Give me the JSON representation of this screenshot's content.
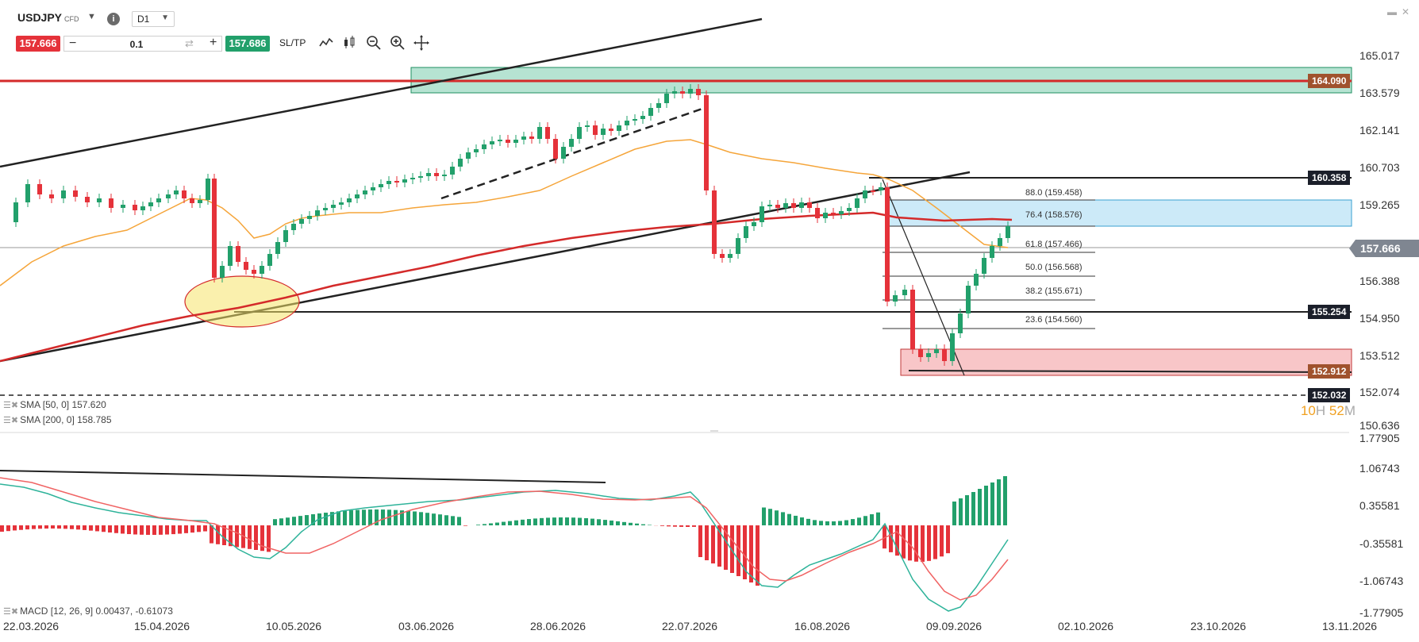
{
  "header": {
    "symbol": "USDJPY",
    "instrument_type": "CFD",
    "timeframe": "D1",
    "sell_price": "157.666",
    "buy_price": "157.686",
    "quantity": "0.1",
    "sltp_label": "SL/TP",
    "tools": [
      "line-chart-icon",
      "candles-icon",
      "zoom-out-icon",
      "zoom-in-icon",
      "crosshair-icon"
    ]
  },
  "price_axis": {
    "labels": [
      "165.017",
      "163.579",
      "162.141",
      "160.703",
      "159.265",
      "156.388",
      "154.950",
      "153.512",
      "152.074",
      "150.636"
    ],
    "current_price": "157.666",
    "level_tags": {
      "resistance_top": "164.090",
      "level_160": "160.358",
      "level_155": "155.254",
      "level_152_9": "152.912",
      "level_152_0": "152.032"
    }
  },
  "fibonacci": [
    {
      "label": "88.0 (159.458)"
    },
    {
      "label": "76.4 (158.576)"
    },
    {
      "label": "61.8 (157.466)"
    },
    {
      "label": "50.0 (156.568)"
    },
    {
      "label": "38.2 (155.671)"
    },
    {
      "label": "23.6 (154.560)"
    }
  ],
  "indicators": {
    "sma50": "SMA [50, 0] 157.620",
    "sma200": "SMA [200, 0] 158.785",
    "macd": "MACD [12, 26, 9] 0.00437, -0.61073"
  },
  "timer": {
    "hours": "10",
    "h": "H",
    "minutes": "52",
    "m": "M"
  },
  "macd_axis": {
    "labels": [
      "1.77905",
      "1.06743",
      "0.35581",
      "-0.35581",
      "-1.06743",
      "-1.77905"
    ]
  },
  "date_axis": {
    "labels": [
      "22.03.2026",
      "15.04.2026",
      "10.05.2026",
      "03.06.2026",
      "28.06.2026",
      "22.07.2026",
      "16.08.2026",
      "09.09.2026",
      "02.10.2026",
      "23.10.2026",
      "13.11.2026"
    ]
  },
  "colors": {
    "up": "#22a06b",
    "down": "#e5323a",
    "sma50": "#f5a53a",
    "sma200": "#d42a2a",
    "resistance_zone": "#2eaf7d",
    "support_zone": "#e5323a",
    "fib_zone": "#8fd0f0",
    "tag_dark": "#1b1f2a",
    "tag_brown": "#a0522d"
  }
}
